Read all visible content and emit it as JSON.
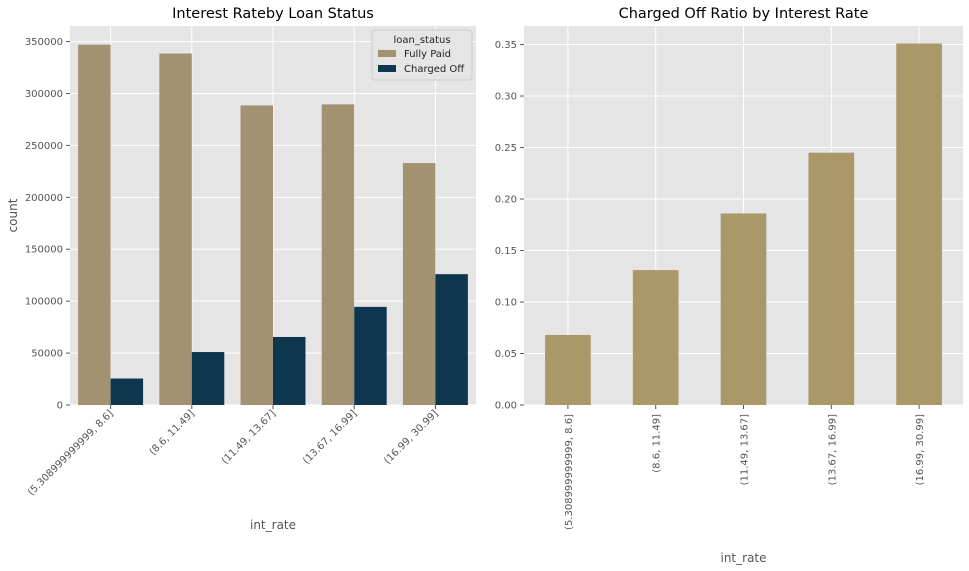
{
  "chart_data": [
    {
      "type": "bar",
      "title": "Interest Rateby Loan Status",
      "xlabel": "int_rate",
      "ylabel": "count",
      "categories": [
        "(5.308999999999, 8.6]",
        "(8.6, 11.49]",
        "(11.49, 13.67]",
        "(13.67, 16.99]",
        "(16.99, 30.99]"
      ],
      "series": [
        {
          "name": "Fully Paid",
          "color": "#a39271",
          "values": [
            347000,
            338500,
            288500,
            289500,
            233000
          ]
        },
        {
          "name": "Charged Off",
          "color": "#0e374f",
          "values": [
            25500,
            51000,
            65500,
            94500,
            126000
          ]
        }
      ],
      "ylim": [
        0,
        365000
      ],
      "yticks": [
        0,
        50000,
        100000,
        150000,
        200000,
        250000,
        300000,
        350000
      ],
      "legend": {
        "title": "loan_status",
        "placement": "top-right"
      },
      "grid": true,
      "xtick_rotation": 45
    },
    {
      "type": "bar",
      "title": "Charged Off Ratio by Interest Rate",
      "xlabel": "int_rate",
      "ylabel": "",
      "categories": [
        "(5.308999999999, 8.6]",
        "(8.6, 11.49]",
        "(11.49, 13.67]",
        "(13.67, 16.99]",
        "(16.99, 30.99]"
      ],
      "series": [
        {
          "name": "",
          "color": "#aa9868",
          "values": [
            0.068,
            0.131,
            0.186,
            0.245,
            0.351
          ]
        }
      ],
      "ylim": [
        0,
        0.368
      ],
      "yticks": [
        0.0,
        0.05,
        0.1,
        0.15,
        0.2,
        0.25,
        0.3,
        0.35
      ],
      "ytick_labels": [
        "0.00",
        "0.05",
        "0.10",
        "0.15",
        "0.20",
        "0.25",
        "0.30",
        "0.35"
      ],
      "grid": true,
      "xtick_rotation": 90
    }
  ]
}
